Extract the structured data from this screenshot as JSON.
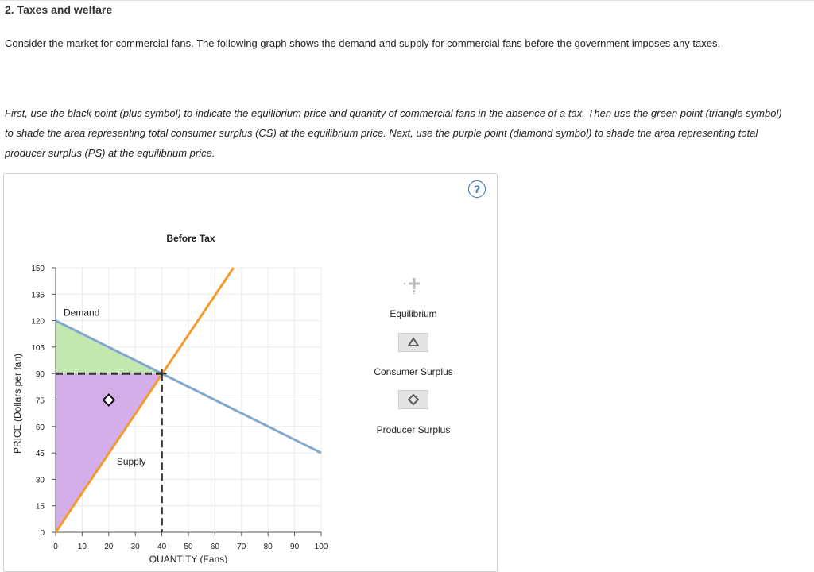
{
  "section_title": "2. Taxes and welfare",
  "intro": "Consider the market for commercial fans. The following graph shows the demand and supply for commercial fans before the government imposes any taxes.",
  "instructions": "First, use the black point (plus symbol) to indicate the equilibrium price and quantity of commercial fans in the absence of a tax. Then use the green point (triangle symbol) to shade the area representing total consumer surplus (CS) at the equilibrium price. Next, use the purple point (diamond symbol) to shade the area representing total producer surplus (PS) at the equilibrium price.",
  "help_label": "?",
  "chart_data": {
    "type": "line",
    "title": "Before Tax",
    "xlabel": "QUANTITY (Fans)",
    "ylabel": "PRICE (Dollars per fan)",
    "xlim": [
      0,
      100
    ],
    "ylim": [
      0,
      150
    ],
    "x_ticks": [
      0,
      10,
      20,
      30,
      40,
      50,
      60,
      70,
      80,
      90,
      100
    ],
    "y_ticks": [
      0,
      15,
      30,
      45,
      60,
      75,
      90,
      105,
      120,
      135,
      150
    ],
    "grid": true,
    "series": [
      {
        "name": "Demand",
        "color": "#7fa9d0",
        "points": [
          [
            0,
            120
          ],
          [
            100,
            45
          ]
        ]
      },
      {
        "name": "Supply",
        "color": "#f59a2e",
        "points": [
          [
            0,
            0
          ],
          [
            67,
            150
          ]
        ]
      }
    ],
    "equilibrium": {
      "x": 40,
      "y": 90,
      "color": "#333333"
    },
    "consumer_surplus": {
      "color": "#c5e8b2",
      "points": [
        [
          0,
          120
        ],
        [
          40,
          90
        ],
        [
          0,
          90
        ]
      ]
    },
    "producer_surplus": {
      "color": "#d4aee8",
      "points": [
        [
          0,
          90
        ],
        [
          40,
          90
        ],
        [
          0,
          0
        ]
      ],
      "marker": {
        "x": 20,
        "y": 75
      }
    }
  },
  "tools": {
    "equilibrium": {
      "label": "Equilibrium",
      "icon": "plus-icon"
    },
    "consumer_surplus": {
      "label": "Consumer Surplus",
      "icon": "triangle-icon",
      "color": "#5a5a5a"
    },
    "producer_surplus": {
      "label": "Producer Surplus",
      "icon": "diamond-icon",
      "color": "#5a5a5a"
    }
  }
}
